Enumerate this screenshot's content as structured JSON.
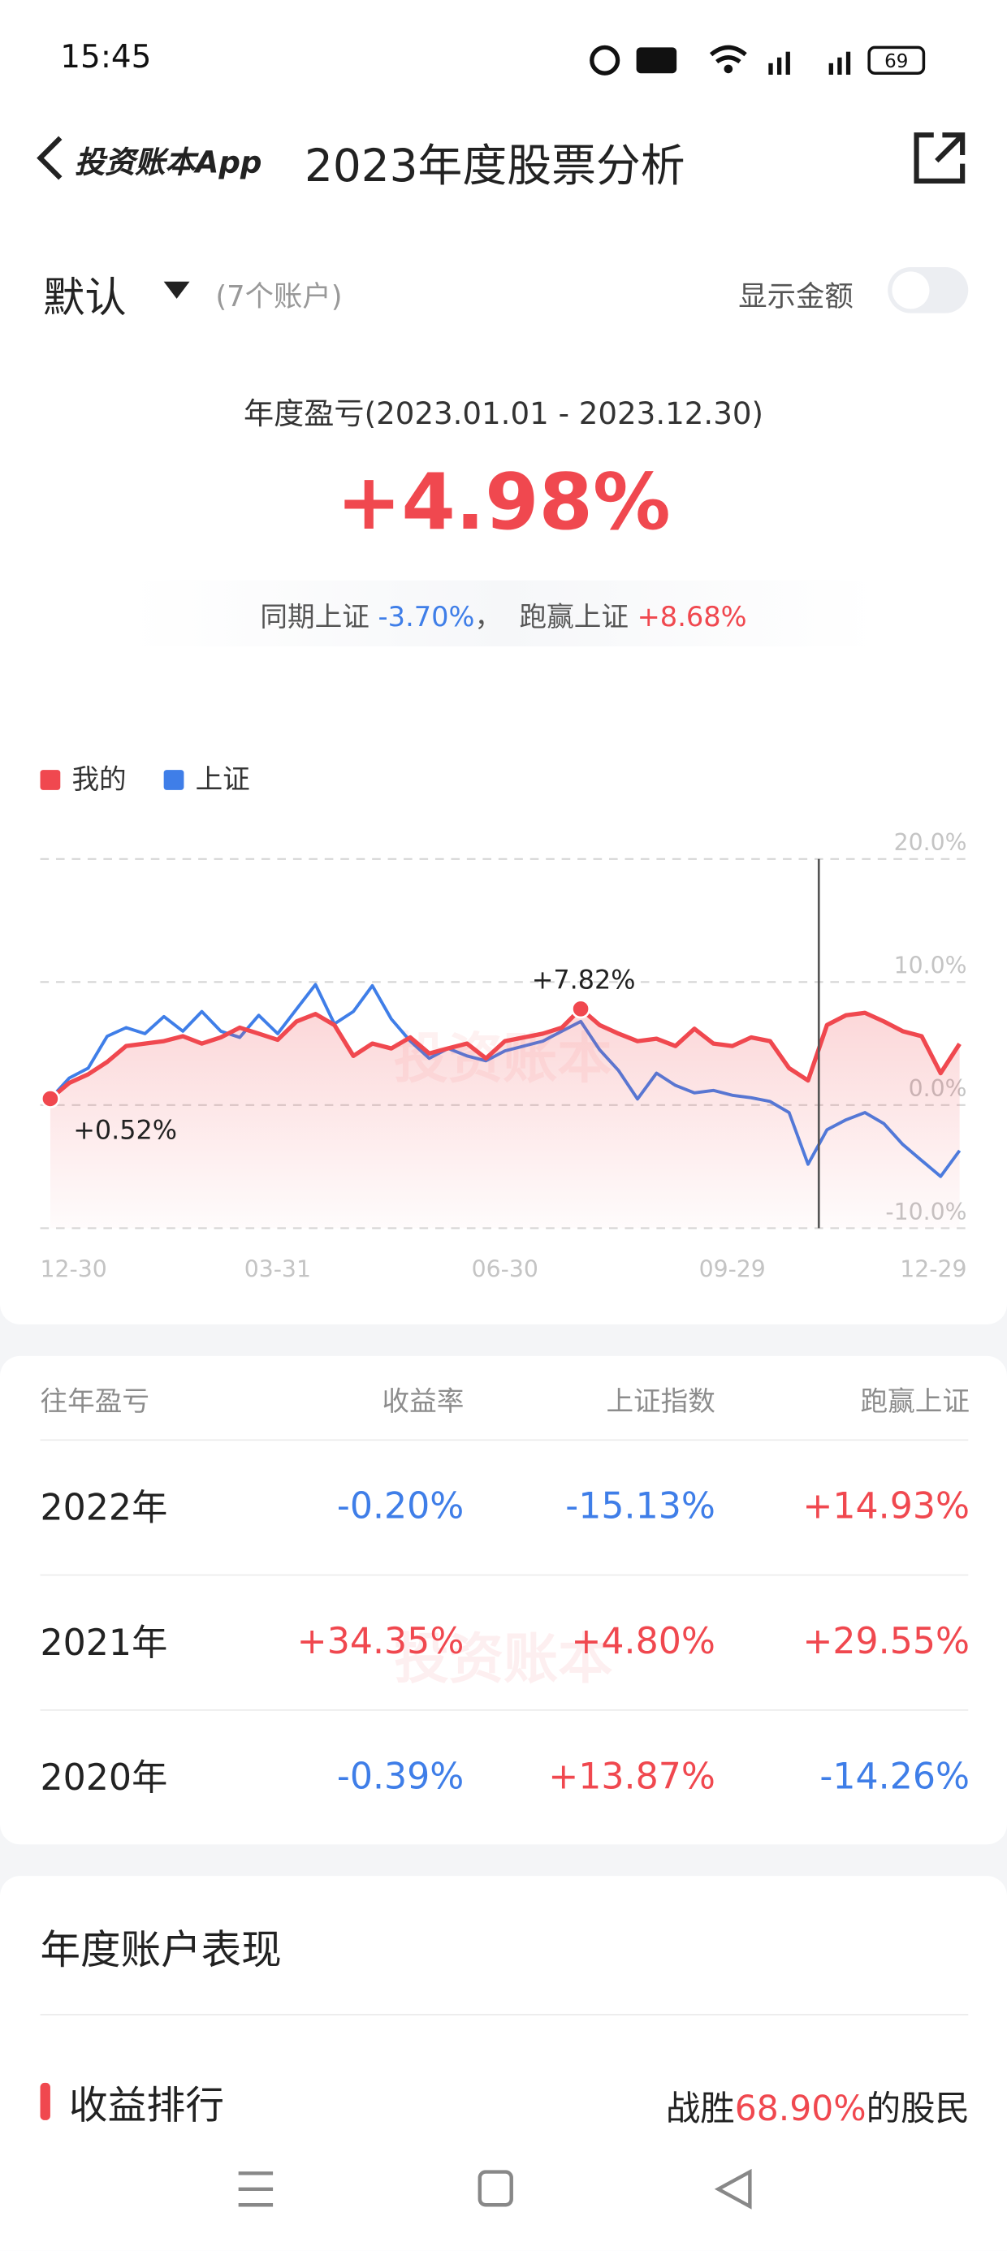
{
  "status_bar": {
    "time": "15:45",
    "battery": "69"
  },
  "nav": {
    "back_label": "投资账本App",
    "title": "2023年度股票分析"
  },
  "account": {
    "name": "默认",
    "count": "(7个账户)",
    "show_amount": "显示金额"
  },
  "summary": {
    "label": "年度盈亏(2023.01.01 - 2023.12.30)",
    "value": "+4.98%",
    "index_label": "同期上证",
    "index_value": "-3.70%",
    "separator": "，",
    "beat_label": "跑赢上证",
    "beat_value": "+8.68%"
  },
  "watermark": "投资账本",
  "chart_data": {
    "type": "line",
    "categories": [
      "12-30",
      null,
      null,
      null,
      null,
      null,
      null,
      null,
      null,
      null,
      null,
      null,
      "03-31",
      null,
      null,
      null,
      null,
      null,
      null,
      null,
      null,
      null,
      null,
      null,
      "06-30",
      null,
      null,
      null,
      null,
      null,
      null,
      null,
      null,
      null,
      null,
      null,
      "09-29",
      null,
      null,
      null,
      null,
      null,
      null,
      null,
      null,
      null,
      null,
      null,
      "12-29"
    ],
    "series": [
      {
        "name": "我的",
        "color": "#f0484f",
        "values": [
          0.52,
          1.8,
          2.5,
          3.5,
          4.8,
          5.0,
          5.2,
          5.6,
          5.0,
          5.5,
          6.3,
          5.8,
          5.3,
          6.8,
          7.4,
          6.5,
          4.0,
          5.0,
          4.6,
          5.5,
          4.2,
          4.6,
          5.0,
          3.8,
          5.2,
          5.5,
          5.8,
          6.3,
          7.82,
          6.5,
          5.8,
          5.2,
          5.4,
          4.8,
          6.2,
          5.0,
          4.8,
          5.5,
          5.2,
          3.0,
          2.0,
          6.5,
          7.3,
          7.5,
          6.8,
          6.0,
          5.6,
          2.6,
          4.98
        ]
      },
      {
        "name": "上证",
        "color": "#3f7ee8",
        "values": [
          0.52,
          2.2,
          3.0,
          5.6,
          6.3,
          5.8,
          7.2,
          6.0,
          7.6,
          6.0,
          5.5,
          7.3,
          5.8,
          7.8,
          9.8,
          6.6,
          7.6,
          9.7,
          7.0,
          5.2,
          3.8,
          4.6,
          4.0,
          3.6,
          4.4,
          4.8,
          5.2,
          6.0,
          6.8,
          4.5,
          2.8,
          0.5,
          2.6,
          1.6,
          1.0,
          1.2,
          0.8,
          0.6,
          0.3,
          -0.6,
          -4.8,
          -2.0,
          -1.2,
          -0.6,
          -1.5,
          -3.2,
          -4.5,
          -5.8,
          -3.7
        ]
      }
    ],
    "ylim": [
      -10,
      20
    ],
    "yticks": [
      {
        "value": -10,
        "label": "-10.0%"
      },
      {
        "value": 0,
        "label": "0.0%"
      },
      {
        "value": 10,
        "label": "10.0%"
      },
      {
        "value": 20,
        "label": "20.0%"
      }
    ],
    "grid": true,
    "legend": "top-left",
    "annotations": [
      "+0.52%",
      "+7.82%"
    ]
  },
  "history": {
    "header": [
      "往年盈亏",
      "收益率",
      "上证指数",
      "跑赢上证"
    ],
    "rows": [
      [
        "2022年",
        "-0.20%",
        "-15.13%",
        "+14.93%"
      ],
      [
        "2021年",
        "+34.35%",
        "+4.80%",
        "+29.55%"
      ],
      [
        "2020年",
        "-0.39%",
        "+13.87%",
        "-14.26%"
      ]
    ]
  },
  "performance": {
    "title": "年度账户表现",
    "ranking": "收益排行",
    "beat_prefix": "战胜",
    "beat_value": "68.90%",
    "beat_suffix": "的股民"
  }
}
